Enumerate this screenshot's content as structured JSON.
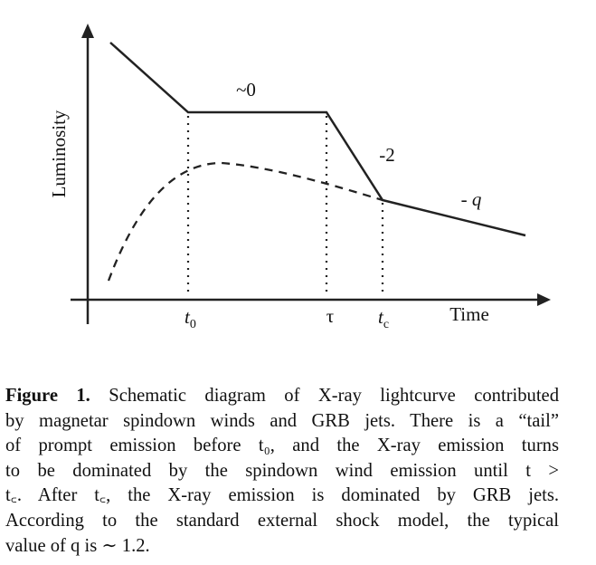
{
  "figure": {
    "ylabel": "Luminosity",
    "xlabel": "Time",
    "ticks": {
      "t0_main": "t",
      "t0_sub": "0",
      "tau": "τ",
      "tc_main": "t",
      "tc_sub": "c"
    },
    "slopes": {
      "plateau": "~0",
      "steep": "-2",
      "late": "- q"
    }
  },
  "caption": {
    "label": "Figure 1.",
    "lines": [
      " Schematic diagram of X-ray lightcurve contributed",
      "by magnetar spindown winds and GRB jets. There is a “tail”",
      "of prompt emission before t₀, and the X-ray emission turns",
      "to be dominated by the spindown wind emission until t >",
      "t꜀. After t꜀, the X-ray emission is dominated by GRB jets.",
      "According to the standard external shock model, the typical",
      "value of q is ∼ 1.2."
    ]
  }
}
